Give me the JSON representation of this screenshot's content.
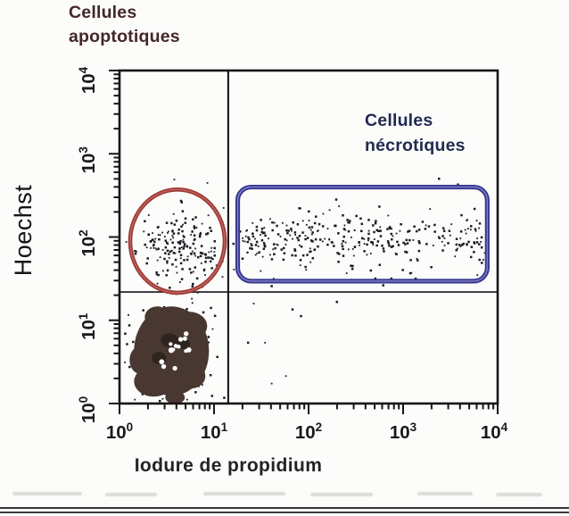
{
  "page": {
    "background": "#fcfcfb"
  },
  "annotations": {
    "apoptotic": {
      "line1": "Cellules",
      "line2": "apoptotiques",
      "color": "#44262b"
    },
    "necrotic": {
      "line1": "Cellules",
      "line2": "nécrotiques",
      "color": "#222b4e"
    }
  },
  "chart_data": {
    "type": "scatter",
    "title": "",
    "xlabel": "Iodure de propidium",
    "ylabel": "Hoechst",
    "x_scale": "log",
    "y_scale": "log",
    "x_range_exp": [
      0,
      4
    ],
    "y_range_exp": [
      0,
      4
    ],
    "x_tick_exponents": [
      0,
      1,
      2,
      3,
      4
    ],
    "y_tick_exponents": [
      0,
      1,
      2,
      3,
      4
    ],
    "grid": false,
    "quadrant_gates": {
      "x_exp": 1.15,
      "y_exp": 1.34
    },
    "colors": {
      "dot": "#13131d",
      "frame": "#161616",
      "apoptotic_gate": "#9c3a36",
      "apoptotic_gate_light": "#c06460",
      "necrotic_gate": "#35358f",
      "necrotic_gate_light": "#7d7fc4",
      "live_core": "#483831",
      "live_core_dark": "#2e2420"
    },
    "regions": [
      {
        "name": "apoptotic-gate",
        "shape": "ellipse",
        "label": "Cellules apoptotiques",
        "cx_exp": 0.613,
        "cy_exp": 1.95,
        "rx_exp": 0.5,
        "ry_exp": 0.62
      },
      {
        "name": "necrotic-gate",
        "shape": "round-rect",
        "label": "Cellules nécrotiques",
        "x1_exp": 1.25,
        "x2_exp": 3.89,
        "y1_exp": 1.47,
        "y2_exp": 2.6
      }
    ],
    "populations": [
      {
        "name": "cellules-vivantes",
        "type": "dense-blob",
        "cx_exp": 0.55,
        "cy_exp": 0.63,
        "sx_exp": 0.21,
        "sy_exp": 0.3,
        "halo_count": 300,
        "speckle_count": 14,
        "blob_ellipses": [
          [
            0,
            0,
            42,
            50
          ],
          [
            -20,
            34,
            22,
            17
          ],
          [
            20,
            -28,
            20,
            16
          ],
          [
            -16,
            -38,
            14,
            12
          ],
          [
            22,
            28,
            16,
            14
          ],
          [
            -34,
            10,
            13,
            16
          ],
          [
            4,
            52,
            11,
            7
          ]
        ],
        "dark_spots": [
          [
            -2,
            -12,
            10,
            8
          ],
          [
            -14,
            8,
            8,
            7
          ],
          [
            14,
            -8,
            7,
            6
          ]
        ]
      },
      {
        "name": "cellules-apoptotiques",
        "type": "gauss",
        "count": 185,
        "cx_exp": 0.66,
        "cy_exp": 1.88,
        "sx_exp": 0.24,
        "sy_exp": 0.21,
        "clip_ellipse": {
          "cx": 0.613,
          "cy": 1.95,
          "rx": 0.55,
          "ry": 0.68
        }
      },
      {
        "name": "cellules-necrotiques-dense",
        "type": "band",
        "count": 215,
        "x_min_exp": 1.3,
        "x_max_exp": 2.78,
        "cy_exp": 1.95,
        "sy_exp": 0.155,
        "y_min_exp": 1.5,
        "y_max_exp": 2.45
      },
      {
        "name": "cellules-necrotiques-sparse",
        "type": "band",
        "count": 115,
        "x_min_exp": 2.75,
        "x_max_exp": 3.88,
        "cy_exp": 1.96,
        "sy_exp": 0.17,
        "y_min_exp": 1.5,
        "y_max_exp": 2.45
      }
    ],
    "stray_points_exp": [
      [
        1.83,
        1.13
      ],
      [
        1.92,
        1.05
      ],
      [
        2.3,
        1.22
      ],
      [
        1.36,
        0.73
      ],
      [
        1.54,
        0.73
      ],
      [
        3.38,
        2.7
      ],
      [
        3.58,
        2.63
      ],
      [
        3.1,
        2.6
      ],
      [
        2.61,
        2.6
      ],
      [
        1.61,
        0.24
      ],
      [
        1.76,
        0.33
      ],
      [
        1.42,
        1.2
      ],
      [
        1.21,
        1.61
      ],
      [
        1.09,
        1.52
      ],
      [
        0.93,
        2.65
      ],
      [
        0.58,
        2.69
      ],
      [
        1.61,
        1.41
      ],
      [
        2.79,
        1.42
      ]
    ]
  }
}
